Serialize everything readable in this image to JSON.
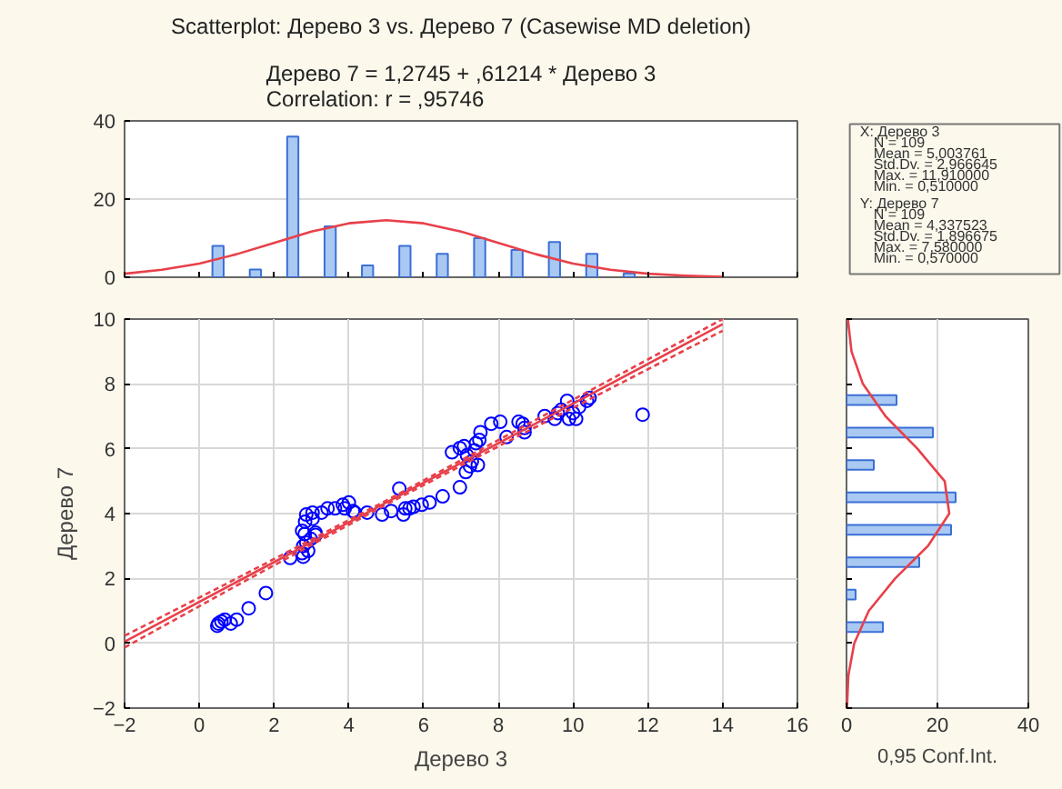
{
  "chart_data": [
    {
      "type": "histogram",
      "title": "Scatterplot: Дерево 3 vs. Дерево 7 (Casewise MD deletion)",
      "subtitle": "Дерево 7 = 1,2745 + ,61214 * Дерево 3\nCorrelation: r = ,95746",
      "bins": [
        0,
        1,
        2,
        3,
        4,
        5,
        6,
        7,
        8,
        9,
        10,
        11,
        12
      ],
      "values": [
        8,
        2,
        36,
        13,
        3,
        8,
        6,
        10,
        7,
        9,
        6,
        1
      ],
      "color": "#a9c9f2",
      "xlim": [
        -2,
        16
      ],
      "xticks": [
        -2,
        0,
        2,
        4,
        6,
        8,
        10,
        12,
        14,
        16
      ],
      "ylim": [
        0,
        40
      ],
      "yticks": [
        0,
        20,
        40
      ],
      "tick_labels": "y",
      "grid": "y",
      "series": [
        {
          "type": "line",
          "color": "#e8404a",
          "x": [
            -2,
            -1,
            0,
            1,
            2,
            3,
            4,
            5,
            6,
            7,
            8,
            9,
            10,
            11,
            12,
            13,
            14
          ],
          "values": [
            0.9,
            1.9,
            3.5,
            5.9,
            8.8,
            11.7,
            13.8,
            14.6,
            13.8,
            11.7,
            8.8,
            5.9,
            3.5,
            1.9,
            0.9,
            0.4,
            0.1
          ]
        }
      ]
    },
    {
      "type": "scatter",
      "xlabel": "Дерево 3",
      "ylabel": "Дерево 7",
      "xlim": [
        -2,
        16
      ],
      "xticks": [
        -2,
        0,
        2,
        4,
        6,
        8,
        10,
        12,
        14,
        16
      ],
      "ylim": [
        -2,
        10
      ],
      "yticks": [
        -2,
        0,
        2,
        4,
        6,
        8,
        10
      ],
      "grid": true,
      "annotations": [
        "0,95 Conf.Int."
      ],
      "series": [
        {
          "type": "scatter",
          "marker": "circle",
          "color": "#0000ff",
          "x": [
            0.51,
            0.59,
            0.48,
            0.68,
            0.84,
            1.0,
            1.32,
            1.78,
            2.43,
            2.75,
            2.78,
            2.82,
            2.75,
            2.83,
            2.86,
            2.91,
            2.86,
            2.78,
            2.98,
            3.11,
            3.03,
            3.27,
            3.43,
            3.63,
            3.89,
            4.0,
            4.11,
            4.16,
            4.49,
            4.89,
            5.13,
            5.35,
            5.51,
            5.46,
            5.62,
            5.73,
            5.95,
            6.16,
            6.51,
            6.97,
            7.13,
            7.24,
            7.29,
            7.36,
            6.97,
            6.76,
            7.08,
            7.4,
            7.45,
            7.16,
            7.52,
            7.49,
            7.81,
            8.05,
            8.22,
            8.54,
            8.65,
            8.7,
            8.7,
            9.24,
            9.51,
            9.59,
            9.68,
            9.84,
            9.89,
            10.0,
            10.08,
            10.16,
            10.37,
            10.44,
            11.86,
            3.03,
            3.11,
            3.84
          ],
          "values": [
            0.61,
            0.67,
            0.54,
            0.73,
            0.61,
            0.73,
            1.08,
            1.55,
            2.63,
            2.78,
            3.0,
            3.37,
            3.47,
            3.75,
            3.97,
            2.85,
            3.1,
            2.67,
            3.22,
            3.41,
            4.03,
            4.03,
            4.16,
            4.16,
            4.16,
            4.34,
            4.08,
            4.03,
            4.03,
            3.97,
            4.08,
            4.77,
            4.16,
            3.97,
            4.16,
            4.21,
            4.27,
            4.34,
            4.53,
            4.81,
            5.28,
            5.46,
            5.61,
            5.95,
            6.02,
            5.89,
            6.08,
            6.17,
            5.5,
            5.8,
            6.51,
            6.27,
            6.77,
            6.83,
            6.36,
            6.83,
            6.77,
            6.64,
            6.51,
            7.01,
            6.92,
            7.1,
            7.2,
            7.48,
            6.92,
            7.1,
            6.92,
            7.29,
            7.48,
            7.57,
            7.05,
            3.84,
            3.34,
            4.27
          ]
        },
        {
          "type": "line",
          "marker": "none",
          "line_style": "solid",
          "color": "#e8404a",
          "x": [
            -2,
            1,
            5,
            9,
            14
          ],
          "values": [
            0.05,
            1.89,
            4.34,
            6.78,
            9.84
          ]
        },
        {
          "type": "line",
          "marker": "none",
          "line_style": "dashed",
          "color": "#e8404a",
          "x": [
            -2,
            1,
            5,
            9,
            14
          ],
          "values": [
            -0.13,
            1.78,
            4.28,
            6.67,
            9.64
          ]
        },
        {
          "type": "line",
          "marker": "none",
          "line_style": "dashed",
          "color": "#e8404a",
          "x": [
            -2,
            1,
            5,
            9,
            14
          ],
          "values": [
            0.23,
            2.0,
            4.4,
            6.89,
            10.0
          ]
        }
      ]
    },
    {
      "type": "histogram",
      "orientation": "horizontal",
      "bins": [
        0,
        1,
        2,
        3,
        4,
        5,
        6,
        7,
        8
      ],
      "values": [
        8,
        2,
        16,
        23,
        24,
        6,
        19,
        11
      ],
      "color": "#a9c9f2",
      "xlim": [
        0,
        40
      ],
      "xticks": [
        0,
        20,
        40
      ],
      "ylim": [
        -2,
        10
      ],
      "yticks": [
        -2,
        0,
        2,
        4,
        6,
        8,
        10
      ],
      "tick_labels": "x",
      "grid": "x",
      "series": [
        {
          "type": "line",
          "color": "#e8404a",
          "x": [
            -2,
            -1,
            0,
            1,
            2,
            3,
            4,
            5,
            6,
            7,
            8,
            9,
            10
          ],
          "values": [
            0.1,
            0.4,
            1.7,
            4.9,
            10.7,
            17.9,
            22.6,
            21.6,
            15.6,
            8.6,
            3.6,
            1.1,
            0.3
          ]
        }
      ]
    },
    {
      "type": "other",
      "annotations": [
        "X: Дерево 3",
        "N = 109",
        "Mean = 5,003761",
        "Std.Dv. = 2,966645",
        "Max. = 11,910000",
        "Min. = 0,510000",
        "Y: Дерево 7",
        "N = 109",
        "Mean = 4,337523",
        "Std.Dv. = 1,896675",
        "Max. = 7,580000",
        "Min. = 0,570000"
      ]
    }
  ]
}
